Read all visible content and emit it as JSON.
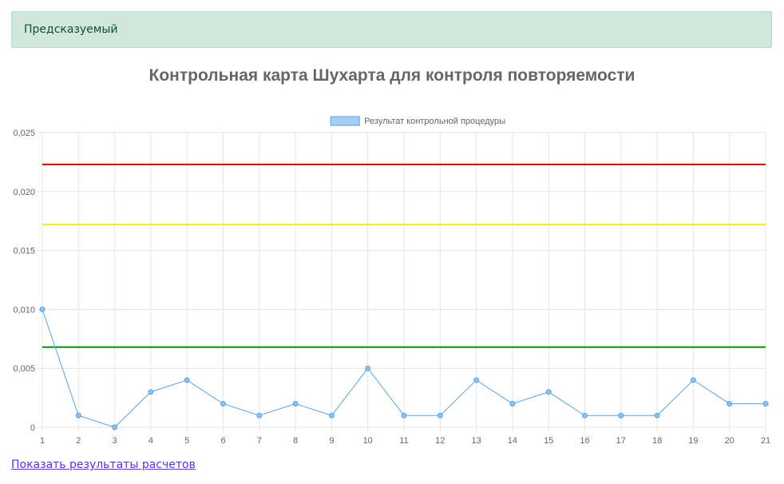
{
  "status": {
    "text": "Предсказуемый"
  },
  "link_label": "Показать результаты расчетов",
  "colors": {
    "series": "#5aa4e6",
    "ucl": "#d40000",
    "warning": "#ffeb00",
    "center": "#0a8a0a",
    "grid": "#e5e5e5"
  },
  "chart_data": {
    "type": "line",
    "title": "Контрольная карта Шухарта для контроля повторяемости",
    "legend_position": "top-center",
    "grid": true,
    "x": [
      "1",
      "2",
      "3",
      "4",
      "5",
      "6",
      "7",
      "8",
      "9",
      "10",
      "11",
      "12",
      "13",
      "14",
      "15",
      "16",
      "17",
      "18",
      "19",
      "20",
      "21"
    ],
    "series": [
      {
        "name": "Результат контрольной процедуры",
        "values": [
          0.01,
          0.001,
          0.0,
          0.003,
          0.004,
          0.002,
          0.001,
          0.002,
          0.001,
          0.005,
          0.001,
          0.001,
          0.004,
          0.002,
          0.003,
          0.001,
          0.001,
          0.001,
          0.004,
          0.002,
          0.002
        ]
      }
    ],
    "reference_lines": [
      {
        "value": 0.0223,
        "color": "#d40000"
      },
      {
        "value": 0.0172,
        "color": "#ffeb00"
      },
      {
        "value": 0.0068,
        "color": "#0a8a0a"
      }
    ],
    "ylim": [
      0,
      0.025
    ],
    "yticks": [
      0,
      0.005,
      0.01,
      0.015,
      0.02,
      0.025
    ],
    "ytick_labels": [
      "0",
      "0,005",
      "0,010",
      "0,015",
      "0,020",
      "0,025"
    ]
  }
}
